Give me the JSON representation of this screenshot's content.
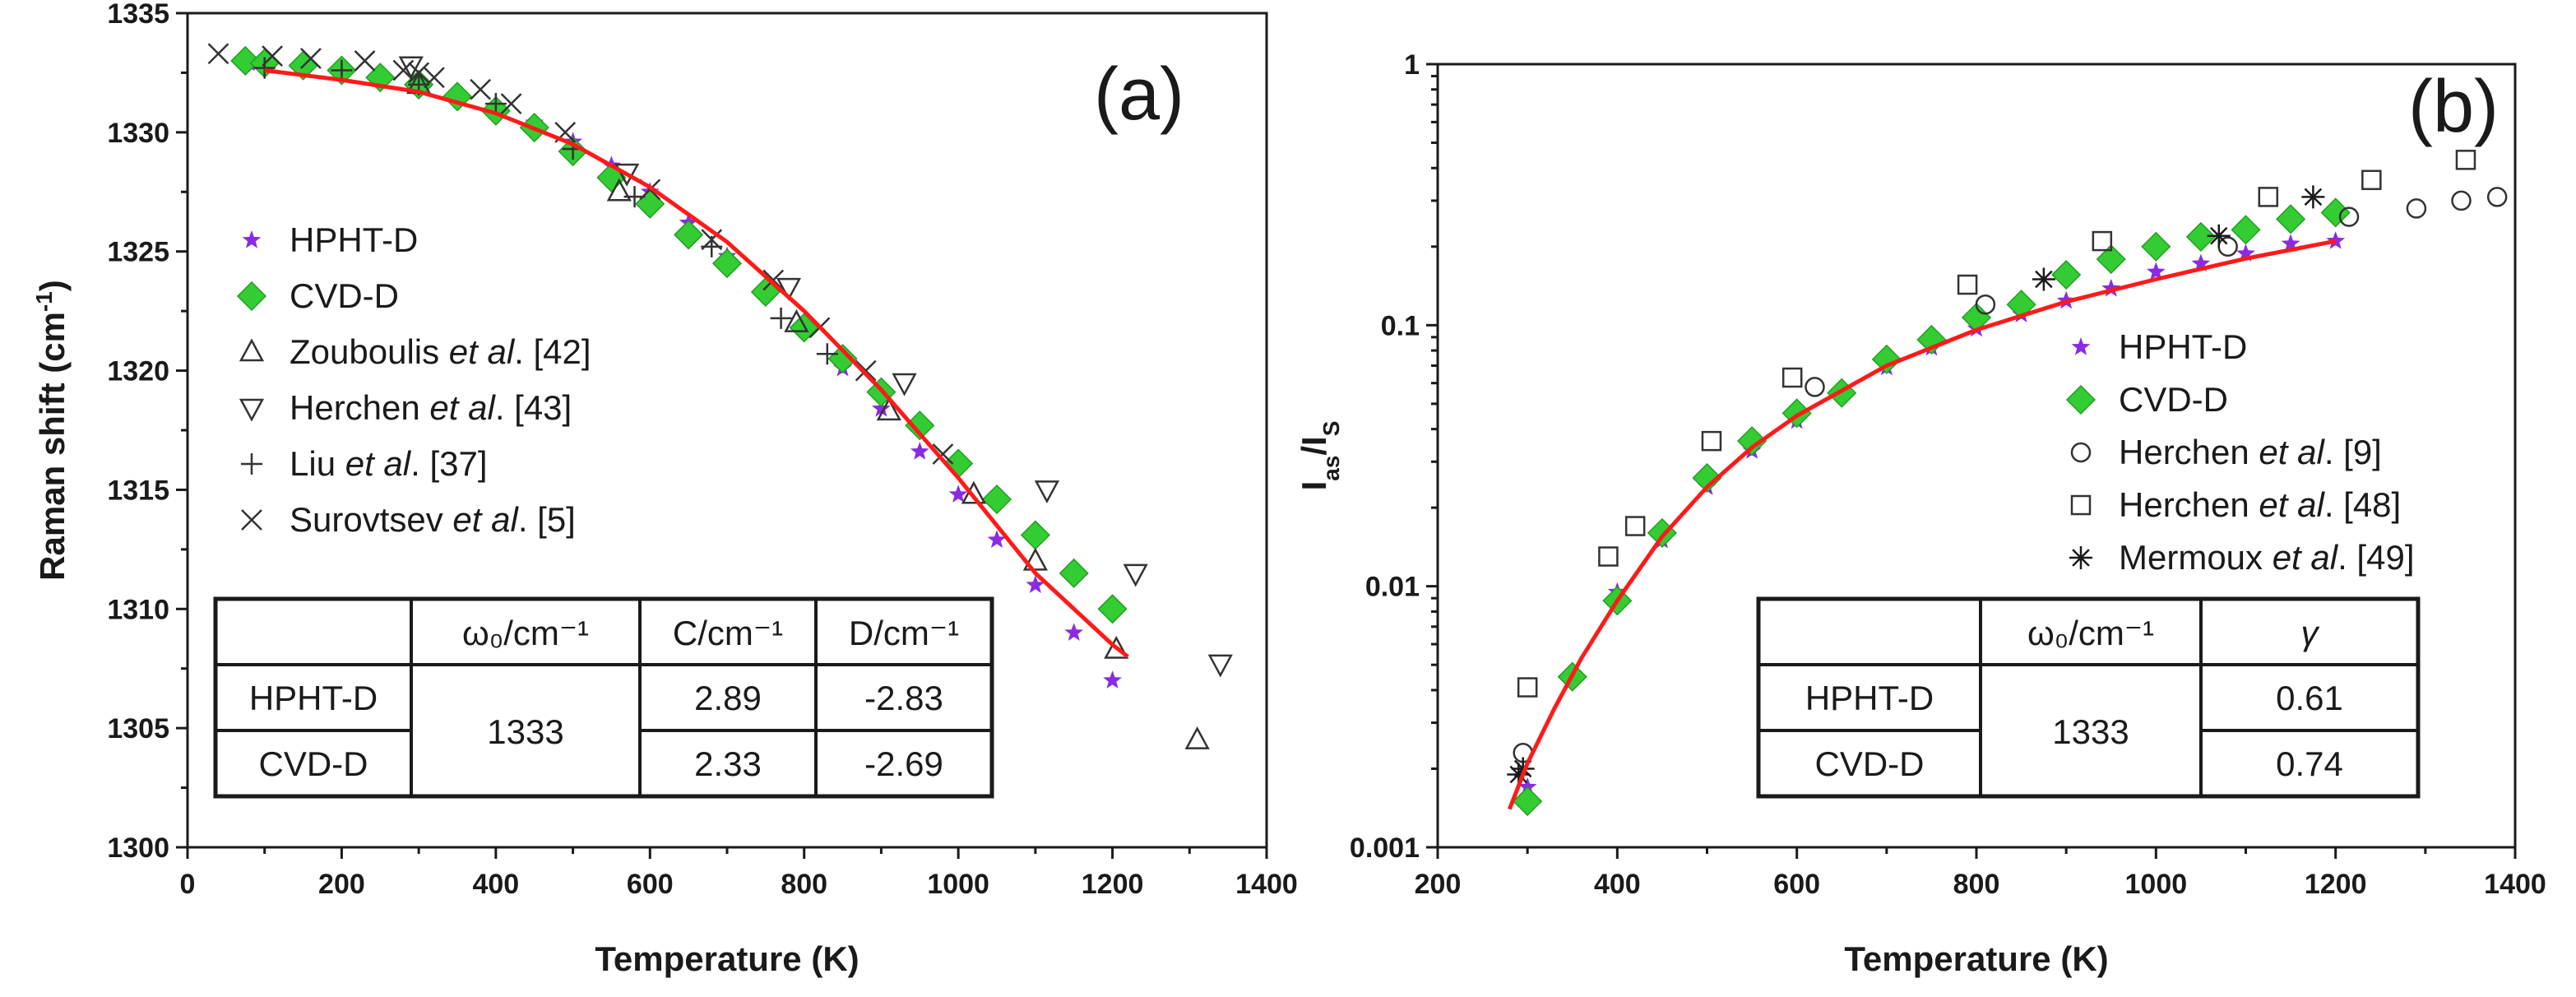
{
  "colors": {
    "hpht": "#8a2be2",
    "cvd": "#33cc33",
    "fit": "#ff1a1a",
    "axis": "#1a1a1a",
    "open_marker": "#333333"
  },
  "chart_data": [
    {
      "type": "scatter",
      "panel_label": "(a)",
      "xlabel": "Temperature (K)",
      "ylabel": "Raman shift (cm",
      "ylabel_sup": "-1",
      "ylabel_end": ")",
      "xlim": [
        0,
        1400
      ],
      "ylim": [
        1300,
        1335
      ],
      "yscale": "linear",
      "xticks": [
        0,
        200,
        400,
        600,
        800,
        1000,
        1200,
        1400
      ],
      "yticks": [
        1300,
        1305,
        1310,
        1315,
        1320,
        1325,
        1330,
        1335
      ],
      "legend_position": "left",
      "legend": [
        {
          "marker": "star",
          "color": "#8a2be2",
          "parts": [
            {
              "t": "HPHT-D"
            }
          ]
        },
        {
          "marker": "diamond",
          "color": "#33cc33",
          "parts": [
            {
              "t": "CVD-D"
            }
          ]
        },
        {
          "marker": "triangle-up",
          "color": "#333333",
          "parts": [
            {
              "t": "Zouboulis "
            },
            {
              "t": "et al",
              "i": true
            },
            {
              "t": ". [42]"
            }
          ]
        },
        {
          "marker": "triangle-down",
          "color": "#333333",
          "parts": [
            {
              "t": "Herchen "
            },
            {
              "t": "et al",
              "i": true
            },
            {
              "t": ". [43]"
            }
          ]
        },
        {
          "marker": "plus",
          "color": "#333333",
          "parts": [
            {
              "t": "Liu "
            },
            {
              "t": "et al",
              "i": true
            },
            {
              "t": ". [37]"
            }
          ]
        },
        {
          "marker": "cross",
          "color": "#333333",
          "parts": [
            {
              "t": "Surovtsev "
            },
            {
              "t": "et al",
              "i": true
            },
            {
              "t": ". [5]"
            }
          ]
        }
      ],
      "series": [
        {
          "name": "HPHT-D",
          "marker": "star",
          "color": "#8a2be2",
          "x": [
            80,
            100,
            150,
            200,
            250,
            300,
            350,
            400,
            450,
            500,
            550,
            600,
            650,
            700,
            750,
            800,
            850,
            900,
            950,
            1000,
            1050,
            1100,
            1150,
            1200
          ],
          "y": [
            1332.9,
            1332.8,
            1332.7,
            1332.5,
            1332.3,
            1331.9,
            1331.5,
            1331.0,
            1330.4,
            1329.6,
            1328.6,
            1327.5,
            1326.2,
            1324.8,
            1323.3,
            1321.7,
            1320.1,
            1318.4,
            1316.6,
            1314.8,
            1312.9,
            1311.0,
            1309.0,
            1307.0
          ]
        },
        {
          "name": "CVD-D",
          "marker": "diamond",
          "color": "#33cc33",
          "x": [
            75,
            100,
            150,
            200,
            250,
            300,
            350,
            400,
            450,
            500,
            550,
            600,
            650,
            700,
            750,
            800,
            850,
            900,
            950,
            1000,
            1050,
            1100,
            1150,
            1200
          ],
          "y": [
            1333.0,
            1332.9,
            1332.8,
            1332.6,
            1332.3,
            1332.0,
            1331.5,
            1330.9,
            1330.2,
            1329.2,
            1328.1,
            1327.0,
            1325.7,
            1324.5,
            1323.3,
            1321.8,
            1320.5,
            1319.1,
            1317.7,
            1316.1,
            1314.6,
            1313.1,
            1311.5,
            1310.0
          ]
        },
        {
          "name": "Zouboulis et al. [42]",
          "marker": "triangle-up",
          "color": "#333333",
          "x": [
            300,
            560,
            790,
            910,
            1020,
            1100,
            1205,
            1310
          ],
          "y": [
            1332.0,
            1327.5,
            1322.0,
            1318.3,
            1314.8,
            1312.0,
            1308.3,
            1304.5
          ]
        },
        {
          "name": "Herchen et al. [43]",
          "marker": "triangle-down",
          "color": "#333333",
          "x": [
            290,
            570,
            780,
            930,
            1115,
            1230,
            1340
          ],
          "y": [
            1332.8,
            1328.3,
            1323.5,
            1319.5,
            1315.0,
            1311.5,
            1307.7
          ]
        },
        {
          "name": "Liu et al. [37]",
          "marker": "plus",
          "color": "#333333",
          "x": [
            100,
            200,
            300,
            400,
            500,
            580,
            680,
            770,
            830
          ],
          "y": [
            1332.7,
            1332.6,
            1332.0,
            1331.2,
            1329.3,
            1327.3,
            1325.2,
            1322.2,
            1320.7
          ]
        },
        {
          "name": "Surovtsev et al. [5]",
          "marker": "cross",
          "color": "#333333",
          "x": [
            40,
            110,
            160,
            230,
            280,
            300,
            320,
            380,
            420,
            490,
            600,
            680,
            760,
            820,
            880,
            980
          ],
          "y": [
            1333.3,
            1333.2,
            1333.1,
            1333.0,
            1332.6,
            1332.5,
            1332.3,
            1331.8,
            1331.2,
            1330.0,
            1327.6,
            1325.5,
            1323.8,
            1321.8,
            1320.0,
            1316.5
          ]
        }
      ],
      "fit": {
        "name": "fit",
        "color": "#ff1a1a",
        "x": [
          100,
          200,
          300,
          400,
          500,
          600,
          700,
          800,
          900,
          1000,
          1100,
          1200,
          1220
        ],
        "y": [
          1332.6,
          1332.2,
          1331.7,
          1330.8,
          1329.5,
          1327.7,
          1325.4,
          1322.5,
          1319.2,
          1315.5,
          1311.5,
          1308.5,
          1308.0
        ]
      },
      "table": {
        "headers": [
          "",
          "ω0/cm-1",
          "C/cm-1",
          "D/cm-1"
        ],
        "rows": [
          {
            "sample": "HPHT-D",
            "omega0": "1333",
            "c": "2.89",
            "d": "-2.83"
          },
          {
            "sample": "CVD-D",
            "omega0": "1333",
            "c": "2.33",
            "d": "-2.69"
          }
        ]
      }
    },
    {
      "type": "scatter",
      "panel_label": "(b)",
      "xlabel": "Temperature (K)",
      "ylabel": "I",
      "ylabel_sub1": "as",
      "ylabel_mid": "/I",
      "ylabel_sub2": "S",
      "xlim": [
        200,
        1400
      ],
      "ylim": [
        0.001,
        1
      ],
      "yscale": "log",
      "xticks": [
        200,
        400,
        600,
        800,
        1000,
        1200,
        1400
      ],
      "yticks": [
        0.001,
        0.01,
        0.1,
        1
      ],
      "ytick_labels": [
        "0.001",
        "0.01",
        "0.1",
        "1"
      ],
      "legend_position": "right",
      "legend": [
        {
          "marker": "star",
          "color": "#8a2be2",
          "parts": [
            {
              "t": "HPHT-D"
            }
          ]
        },
        {
          "marker": "diamond",
          "color": "#33cc33",
          "parts": [
            {
              "t": "CVD-D"
            }
          ]
        },
        {
          "marker": "circle",
          "color": "#333333",
          "parts": [
            {
              "t": "Herchen "
            },
            {
              "t": "et al",
              "i": true
            },
            {
              "t": ". [9]"
            }
          ]
        },
        {
          "marker": "square",
          "color": "#333333",
          "parts": [
            {
              "t": "Herchen "
            },
            {
              "t": "et al",
              "i": true
            },
            {
              "t": ". [48]"
            }
          ]
        },
        {
          "marker": "asterisk",
          "color": "#1a1a1a",
          "parts": [
            {
              "t": "Mermoux "
            },
            {
              "t": "et al",
              "i": true
            },
            {
              "t": ". [49]"
            }
          ]
        }
      ],
      "series": [
        {
          "name": "HPHT-D",
          "marker": "star",
          "color": "#8a2be2",
          "x": [
            300,
            350,
            400,
            450,
            500,
            550,
            600,
            650,
            700,
            750,
            800,
            850,
            900,
            950,
            1000,
            1050,
            1100,
            1150,
            1200
          ],
          "y": [
            0.0017,
            0.0045,
            0.0095,
            0.015,
            0.024,
            0.033,
            0.043,
            0.056,
            0.069,
            0.082,
            0.097,
            0.11,
            0.124,
            0.138,
            0.16,
            0.172,
            0.188,
            0.205,
            0.21
          ]
        },
        {
          "name": "CVD-D",
          "marker": "diamond",
          "color": "#33cc33",
          "x": [
            300,
            350,
            400,
            450,
            500,
            550,
            600,
            650,
            700,
            750,
            800,
            850,
            900,
            950,
            1000,
            1050,
            1100,
            1150,
            1200
          ],
          "y": [
            0.0015,
            0.0045,
            0.0088,
            0.016,
            0.026,
            0.036,
            0.046,
            0.055,
            0.074,
            0.088,
            0.107,
            0.12,
            0.156,
            0.179,
            0.2,
            0.218,
            0.232,
            0.255,
            0.27
          ]
        },
        {
          "name": "Herchen et al. [9]",
          "marker": "circle",
          "color": "#333333",
          "x": [
            295,
            620,
            810,
            1080,
            1215,
            1290,
            1340,
            1380
          ],
          "y": [
            0.0023,
            0.058,
            0.12,
            0.2,
            0.26,
            0.28,
            0.3,
            0.31
          ]
        },
        {
          "name": "Herchen et al. [48]",
          "marker": "square",
          "color": "#333333",
          "x": [
            300,
            390,
            420,
            505,
            595,
            790,
            940,
            1125,
            1240,
            1345
          ],
          "y": [
            0.0041,
            0.013,
            0.017,
            0.036,
            0.063,
            0.143,
            0.21,
            0.31,
            0.36,
            0.43
          ]
        },
        {
          "name": "Mermoux et al. [49]",
          "marker": "asterisk",
          "color": "#1a1a1a",
          "x": [
            290,
            295,
            875,
            1070,
            1175
          ],
          "y": [
            0.0019,
            0.002,
            0.15,
            0.22,
            0.31
          ]
        }
      ],
      "fit": {
        "name": "fit",
        "color": "#ff1a1a",
        "x": [
          280,
          300,
          330,
          360,
          400,
          450,
          500,
          550,
          600,
          700,
          800,
          900,
          1000,
          1100,
          1200
        ],
        "y": [
          0.0014,
          0.0021,
          0.0034,
          0.0053,
          0.0088,
          0.0155,
          0.024,
          0.034,
          0.045,
          0.07,
          0.096,
          0.123,
          0.15,
          0.18,
          0.21
        ]
      },
      "table": {
        "headers": [
          "",
          "ω0/cm-1",
          "γ"
        ],
        "rows": [
          {
            "sample": "HPHT-D",
            "omega0": "1333",
            "gamma": "0.61"
          },
          {
            "sample": "CVD-D",
            "omega0": "1333",
            "gamma": "0.74"
          }
        ]
      }
    }
  ]
}
